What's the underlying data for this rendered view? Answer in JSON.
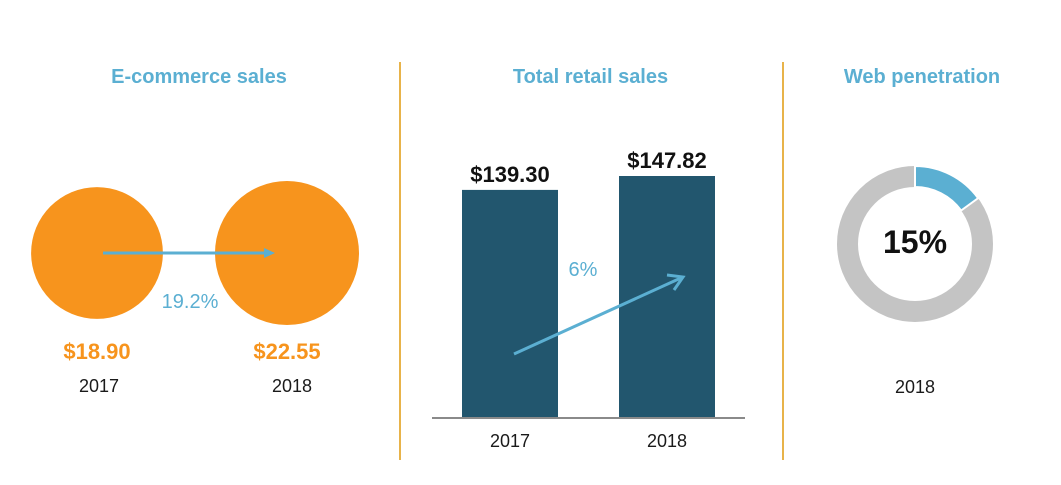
{
  "colors": {
    "orange": "#f7941d",
    "navy": "#22566e",
    "blue": "#5bafd2",
    "gray": "#c4c4c4",
    "divider": "#e8b34a",
    "text": "#1a1a1a"
  },
  "chart_data": [
    {
      "type": "bubble",
      "title": "E-commerce sales",
      "categories": [
        "2017",
        "2018"
      ],
      "values": [
        18.9,
        22.55
      ],
      "value_labels": [
        "$18.90",
        "$22.55"
      ],
      "change_label": "19.2%"
    },
    {
      "type": "bar",
      "title": "Total retail sales",
      "categories": [
        "2017",
        "2018"
      ],
      "values": [
        139.3,
        147.82
      ],
      "value_labels": [
        "$139.30",
        "$147.82"
      ],
      "change_label": "6%"
    },
    {
      "type": "pie",
      "title": "Web penetration",
      "categories": [
        "2018"
      ],
      "values": [
        15
      ],
      "value_label": "15%"
    }
  ]
}
